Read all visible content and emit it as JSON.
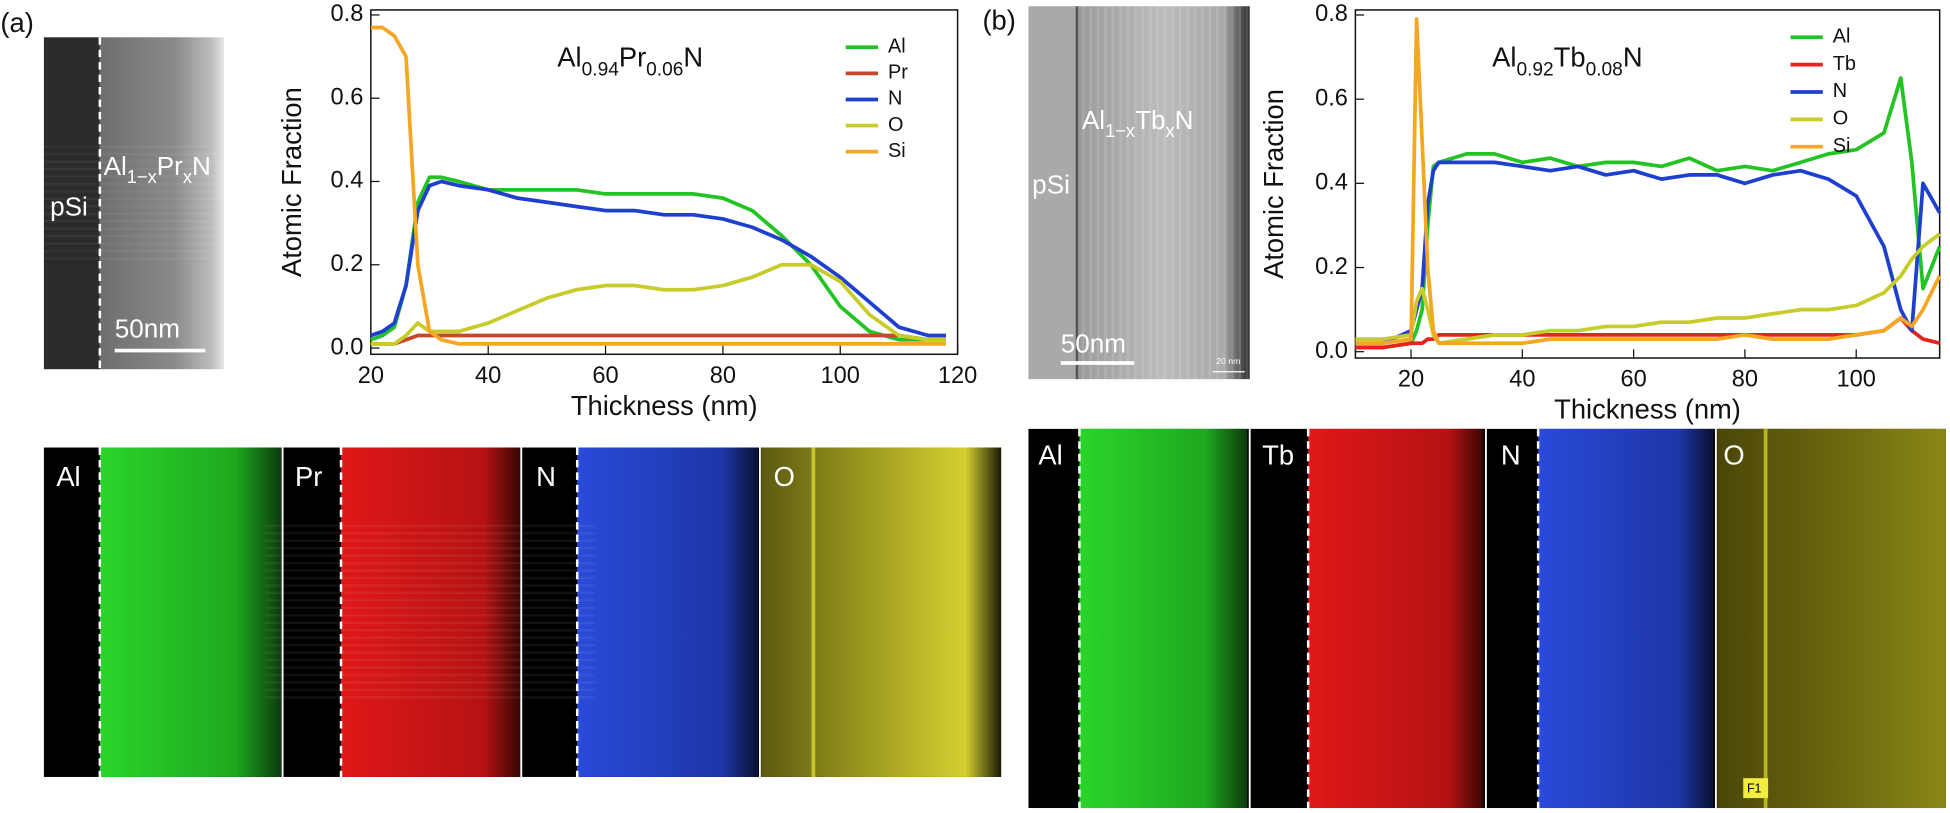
{
  "chart_data": [
    {
      "type": "line",
      "annotation": [
        "Al",
        "0.94",
        "Pr",
        "0.06",
        "N"
      ],
      "xlabel": "Thickness (nm)",
      "ylabel": "Atomic Fraction",
      "x": [
        20,
        22,
        24,
        26,
        28,
        30,
        32,
        35,
        40,
        45,
        50,
        55,
        60,
        65,
        70,
        75,
        80,
        85,
        90,
        95,
        100,
        105,
        110,
        115,
        118
      ],
      "series": [
        {
          "name": "Al",
          "color": "#22c322",
          "values": [
            0.02,
            0.03,
            0.05,
            0.15,
            0.35,
            0.41,
            0.41,
            0.4,
            0.38,
            0.38,
            0.38,
            0.38,
            0.37,
            0.37,
            0.37,
            0.37,
            0.36,
            0.33,
            0.27,
            0.2,
            0.1,
            0.04,
            0.02,
            0.02,
            0.02
          ]
        },
        {
          "name": "Pr",
          "color": "#c8472a",
          "values": [
            0.01,
            0.01,
            0.01,
            0.02,
            0.03,
            0.03,
            0.03,
            0.03,
            0.03,
            0.03,
            0.03,
            0.03,
            0.03,
            0.03,
            0.03,
            0.03,
            0.03,
            0.03,
            0.03,
            0.03,
            0.03,
            0.03,
            0.03,
            0.02,
            0.02
          ]
        },
        {
          "name": "N",
          "color": "#1f3fcf",
          "values": [
            0.03,
            0.04,
            0.06,
            0.15,
            0.33,
            0.39,
            0.4,
            0.39,
            0.38,
            0.36,
            0.35,
            0.34,
            0.33,
            0.33,
            0.32,
            0.32,
            0.31,
            0.29,
            0.26,
            0.22,
            0.17,
            0.11,
            0.05,
            0.03,
            0.03
          ]
        },
        {
          "name": "O",
          "color": "#c8cc2a",
          "values": [
            0.01,
            0.01,
            0.01,
            0.03,
            0.06,
            0.04,
            0.04,
            0.04,
            0.06,
            0.09,
            0.12,
            0.14,
            0.15,
            0.15,
            0.14,
            0.14,
            0.15,
            0.17,
            0.2,
            0.2,
            0.16,
            0.08,
            0.03,
            0.02,
            0.02
          ]
        },
        {
          "name": "Si",
          "color": "#f5a623",
          "values": [
            0.77,
            0.77,
            0.75,
            0.7,
            0.2,
            0.04,
            0.02,
            0.01,
            0.01,
            0.01,
            0.01,
            0.01,
            0.01,
            0.01,
            0.01,
            0.01,
            0.01,
            0.01,
            0.01,
            0.01,
            0.01,
            0.01,
            0.01,
            0.01,
            0.01
          ]
        }
      ],
      "xlim": [
        20,
        120
      ],
      "xticks": [
        20,
        40,
        60,
        80,
        100,
        120
      ],
      "ylim": [
        -0.015,
        0.812
      ],
      "yticks": [
        {
          "value": 0,
          "label": "0.0"
        },
        {
          "value": 0.2,
          "label": "0.2"
        },
        {
          "value": 0.4,
          "label": "0.4"
        },
        {
          "value": 0.6,
          "label": "0.6"
        },
        {
          "value": 0.8,
          "label": "0.8"
        }
      ],
      "grid": false,
      "legend": "upper right"
    },
    {
      "type": "line",
      "annotation": [
        "Al",
        "0.92",
        "Tb",
        "0.08",
        "N"
      ],
      "xlabel": "Thickness (nm)",
      "ylabel": "Atomic Fraction",
      "x": [
        10,
        15,
        20,
        21,
        22,
        23,
        24,
        25,
        30,
        35,
        40,
        45,
        50,
        55,
        60,
        65,
        70,
        75,
        80,
        85,
        90,
        95,
        100,
        105,
        108,
        110,
        112,
        115
      ],
      "series": [
        {
          "name": "Al",
          "color": "#22c322",
          "values": [
            0.01,
            0.01,
            0.02,
            0.05,
            0.1,
            0.3,
            0.44,
            0.45,
            0.47,
            0.47,
            0.45,
            0.46,
            0.44,
            0.45,
            0.45,
            0.44,
            0.46,
            0.43,
            0.44,
            0.43,
            0.45,
            0.47,
            0.48,
            0.52,
            0.65,
            0.45,
            0.15,
            0.25
          ]
        },
        {
          "name": "Tb",
          "color": "#e8231f",
          "values": [
            0.01,
            0.01,
            0.02,
            0.02,
            0.02,
            0.03,
            0.03,
            0.04,
            0.04,
            0.04,
            0.04,
            0.04,
            0.04,
            0.04,
            0.04,
            0.04,
            0.04,
            0.04,
            0.04,
            0.04,
            0.04,
            0.04,
            0.04,
            0.05,
            0.08,
            0.05,
            0.03,
            0.02
          ]
        },
        {
          "name": "N",
          "color": "#1f3fcf",
          "values": [
            0.02,
            0.02,
            0.05,
            0.1,
            0.15,
            0.35,
            0.43,
            0.45,
            0.45,
            0.45,
            0.44,
            0.43,
            0.44,
            0.42,
            0.43,
            0.41,
            0.42,
            0.42,
            0.4,
            0.42,
            0.43,
            0.41,
            0.37,
            0.25,
            0.1,
            0.05,
            0.4,
            0.33
          ]
        },
        {
          "name": "O",
          "color": "#c8cc2a",
          "values": [
            0.03,
            0.03,
            0.04,
            0.12,
            0.15,
            0.1,
            0.04,
            0.02,
            0.03,
            0.04,
            0.04,
            0.05,
            0.05,
            0.06,
            0.06,
            0.07,
            0.07,
            0.08,
            0.08,
            0.09,
            0.1,
            0.1,
            0.11,
            0.14,
            0.18,
            0.22,
            0.25,
            0.28
          ]
        },
        {
          "name": "Si",
          "color": "#f5a623",
          "values": [
            0.02,
            0.02,
            0.03,
            0.79,
            0.5,
            0.2,
            0.05,
            0.02,
            0.02,
            0.02,
            0.02,
            0.03,
            0.03,
            0.03,
            0.03,
            0.03,
            0.03,
            0.03,
            0.04,
            0.03,
            0.03,
            0.03,
            0.04,
            0.05,
            0.08,
            0.06,
            0.1,
            0.18
          ]
        }
      ],
      "xlim": [
        10,
        115
      ],
      "xticks": [
        20,
        40,
        60,
        80,
        100
      ],
      "ylim": [
        -0.015,
        0.812
      ],
      "yticks": [
        {
          "value": 0,
          "label": "0.0"
        },
        {
          "value": 0.2,
          "label": "0.2"
        },
        {
          "value": 0.4,
          "label": "0.4"
        },
        {
          "value": 0.6,
          "label": "0.6"
        },
        {
          "value": 0.8,
          "label": "0.8"
        }
      ],
      "grid": false,
      "legend": "upper right"
    }
  ],
  "panel_a": {
    "label": "(a)",
    "substrate": "pSi",
    "film": [
      "Al",
      "1−x",
      "Pr",
      "x",
      "N"
    ],
    "scale_bar": "50nm",
    "maps": [
      "Al",
      "Pr",
      "N",
      "O"
    ]
  },
  "panel_b": {
    "label": "(b)",
    "substrate": "pSi",
    "film": [
      "Al",
      "1−x",
      "Tb",
      "x",
      "N"
    ],
    "scale_bar": "50nm",
    "inset_scale": "20 nm",
    "maps": [
      "Al",
      "Tb",
      "N",
      "O"
    ],
    "tag": "F1"
  }
}
